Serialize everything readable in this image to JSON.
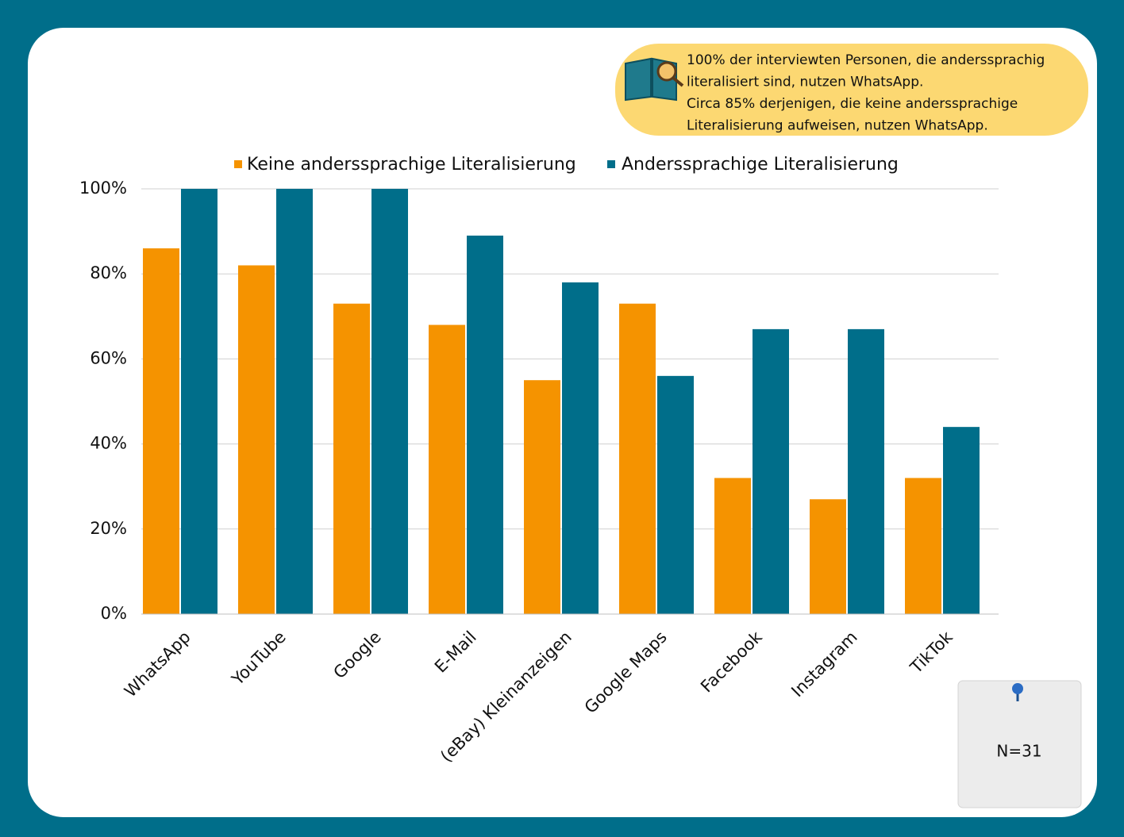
{
  "chart_data": {
    "type": "bar",
    "categories": [
      "WhatsApp",
      "YouTube",
      "Google",
      "E-Mail",
      "(eBay) Kleinanzeigen",
      "Google Maps",
      "Facebook",
      "Instagram",
      "TikTok"
    ],
    "series": [
      {
        "name": "Keine anderssprachige Literalisierung",
        "color": "#f59300",
        "values": [
          86,
          82,
          73,
          68,
          55,
          73,
          32,
          27,
          32
        ]
      },
      {
        "name": "Anderssprachige Literalisierung",
        "color": "#006e8a",
        "values": [
          100,
          100,
          100,
          89,
          78,
          56,
          67,
          67,
          44
        ]
      }
    ],
    "ylim": [
      0,
      100
    ],
    "yticks": [
      {
        "value": 0,
        "label": "0%"
      },
      {
        "value": 20,
        "label": "20%"
      },
      {
        "value": 40,
        "label": "40%"
      },
      {
        "value": 60,
        "label": "60%"
      },
      {
        "value": 80,
        "label": "80%"
      },
      {
        "value": 100,
        "label": "100%"
      }
    ],
    "grid": true,
    "annotation": [
      "100% der interviewten Personen, die anderssprachig",
      "literalisiert sind, nutzen WhatsApp.",
      "Circa 85% derjenigen, die keine anderssprachige",
      "Literalisierung aufweisen, nutzen WhatsApp."
    ],
    "note": "N=31"
  }
}
